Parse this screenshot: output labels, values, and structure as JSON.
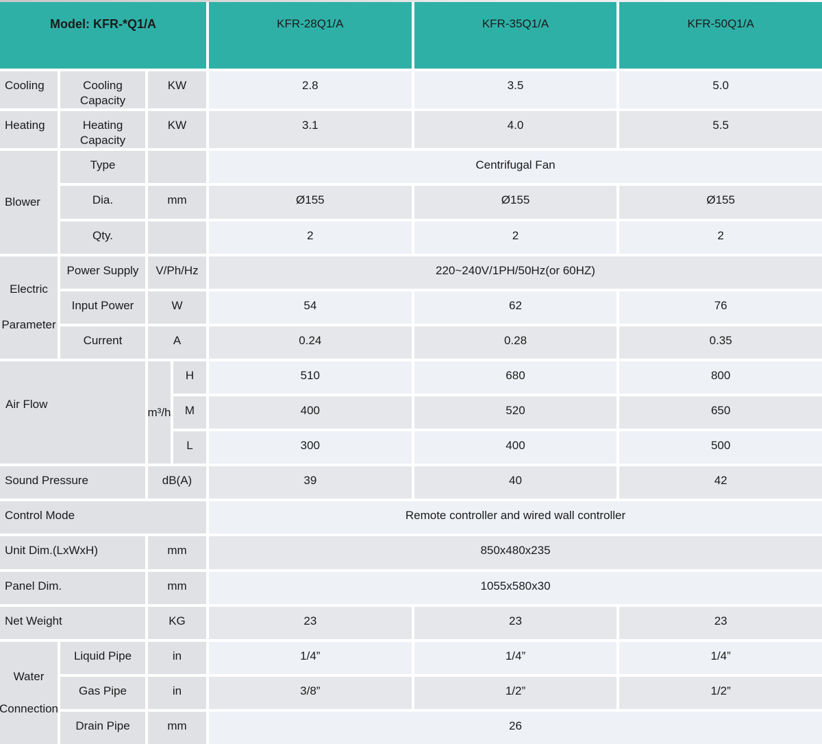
{
  "colors": {
    "header_teal": "#2fb0a7",
    "label_gray": "#e0e1e5",
    "row_light": "#eef1f6",
    "row_dark": "#e5e7ea",
    "separator_white": "#ffffff",
    "text_dark": "#1a1a1a"
  },
  "header": {
    "model": "Model: KFR-*Q1/A",
    "col1": "KFR-28Q1/A",
    "col2": "KFR-35Q1/A",
    "col3": "KFR-50Q1/A"
  },
  "rows": {
    "cooling": {
      "group": "Cooling",
      "label": "Cooling Capacity",
      "unit": "KW",
      "v1": "2.8",
      "v2": "3.5",
      "v3": "5.0"
    },
    "heating": {
      "group": "Heating",
      "label": "Heating Capacity",
      "unit": "KW",
      "v1": "3.1",
      "v2": "4.0",
      "v3": "5.5"
    },
    "blower": {
      "group": "Blower",
      "type_label": "Type",
      "type_value": "Centrifugal Fan",
      "dia_label": "Dia.",
      "dia_unit": "mm",
      "dia_v1": "Ø155",
      "dia_v2": "Ø155",
      "dia_v3": "Ø155",
      "qty_label": "Qty.",
      "qty_v1": "2",
      "qty_v2": "2",
      "qty_v3": "2"
    },
    "electric": {
      "group": "Electric Parameter",
      "ps_label": "Power Supply",
      "ps_unit": "V/Ph/Hz",
      "ps_value": "220~240V/1PH/50Hz(or 60HZ)",
      "ip_label": "Input Power",
      "ip_unit": "W",
      "ip_v1": "54",
      "ip_v2": "62",
      "ip_v3": "76",
      "cur_label": "Current",
      "cur_unit": "A",
      "cur_v1": "0.24",
      "cur_v2": "0.28",
      "cur_v3": "0.35"
    },
    "air_flow": {
      "group": "Air Flow",
      "unit": "m³/h",
      "h_label": "H",
      "h_v1": "510",
      "h_v2": "680",
      "h_v3": "800",
      "m_label": "M",
      "m_v1": "400",
      "m_v2": "520",
      "m_v3": "650",
      "l_label": "L",
      "l_v1": "300",
      "l_v2": "400",
      "l_v3": "500"
    },
    "sound": {
      "label": "Sound Pressure",
      "unit": "dB(A)",
      "v1": "39",
      "v2": "40",
      "v3": "42"
    },
    "control": {
      "label": "Control Mode",
      "value": "Remote controller and wired wall controller"
    },
    "unit_dim": {
      "label": "Unit Dim.(LxWxH)",
      "unit": "mm",
      "value": "850x480x235"
    },
    "panel_dim": {
      "label": "Panel Dim.",
      "unit": "mm",
      "value": "1055x580x30"
    },
    "net_weight": {
      "label": "Net Weight",
      "unit": "KG",
      "v1": "23",
      "v2": "23",
      "v3": "23"
    },
    "water": {
      "group": "Water Connection",
      "liquid_label": "Liquid Pipe",
      "liquid_unit": "in",
      "liquid_v1": "1/4”",
      "liquid_v2": "1/4”",
      "liquid_v3": "1/4”",
      "gas_label": "Gas Pipe",
      "gas_unit": "in",
      "gas_v1": "3/8”",
      "gas_v2": "1/2”",
      "gas_v3": "1/2”",
      "drain_label": "Drain Pipe",
      "drain_unit": "mm",
      "drain_value": "26"
    }
  }
}
